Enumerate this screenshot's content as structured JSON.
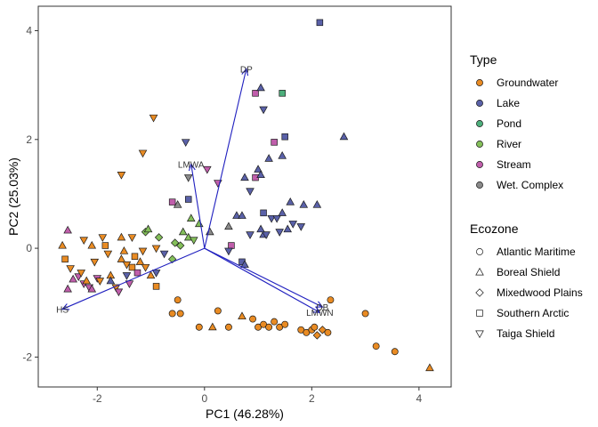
{
  "chart_data": {
    "type": "scatter",
    "xlabel": "PC1 (46.28%)",
    "ylabel": "PC2 (25.03%)",
    "xlim": [
      -3.1,
      4.6
    ],
    "ylim": [
      -2.55,
      4.45
    ],
    "xticks": [
      -2,
      0,
      2,
      4
    ],
    "yticks": [
      -2,
      0,
      2,
      4
    ],
    "grid": false,
    "legend_position": "right",
    "type_legend": {
      "title": "Type",
      "items": [
        {
          "name": "Groundwater",
          "color": "#E98B23"
        },
        {
          "name": "Lake",
          "color": "#5A61A8"
        },
        {
          "name": "Pond",
          "color": "#4DAF7C"
        },
        {
          "name": "River",
          "color": "#84BF5A"
        },
        {
          "name": "Stream",
          "color": "#C05EAB"
        },
        {
          "name": "Wet. Complex",
          "color": "#8A8A8A"
        }
      ]
    },
    "ecozone_legend": {
      "title": "Ecozone",
      "items": [
        {
          "name": "Atlantic Maritime",
          "shape": "circle"
        },
        {
          "name": "Boreal Shield",
          "shape": "triangle"
        },
        {
          "name": "Mixedwood Plains",
          "shape": "diamond"
        },
        {
          "name": "Southern Arctic",
          "shape": "square"
        },
        {
          "name": "Taiga Shield",
          "shape": "triangle-down"
        }
      ]
    },
    "vectors": [
      {
        "label": "DP",
        "x": 0.78,
        "y": 3.3
      },
      {
        "label": "LMWA",
        "x": -0.25,
        "y": 1.55
      },
      {
        "label": "HS",
        "x": -2.65,
        "y": -1.12
      },
      {
        "label": "DB",
        "x": 2.2,
        "y": -1.08
      },
      {
        "label": "LMWN",
        "x": 2.15,
        "y": -1.18
      }
    ],
    "points": [
      {
        "x": -2.65,
        "y": 0.05,
        "t": "Groundwater",
        "s": "triangle"
      },
      {
        "x": -2.6,
        "y": -0.2,
        "t": "Groundwater",
        "s": "square"
      },
      {
        "x": -2.55,
        "y": 0.33,
        "t": "Stream",
        "s": "triangle"
      },
      {
        "x": -2.5,
        "y": -0.37,
        "t": "Groundwater",
        "s": "triangle-down"
      },
      {
        "x": -2.45,
        "y": -0.57,
        "t": "Stream",
        "s": "triangle"
      },
      {
        "x": -2.55,
        "y": -0.75,
        "t": "Stream",
        "s": "triangle"
      },
      {
        "x": -2.35,
        "y": -0.52,
        "t": "Stream",
        "s": "triangle-down"
      },
      {
        "x": -2.3,
        "y": -0.45,
        "t": "Groundwater",
        "s": "triangle-down"
      },
      {
        "x": -2.25,
        "y": -0.65,
        "t": "Stream",
        "s": "triangle-down"
      },
      {
        "x": -2.2,
        "y": -0.6,
        "t": "Groundwater",
        "s": "triangle"
      },
      {
        "x": -2.15,
        "y": -0.72,
        "t": "Stream",
        "s": "triangle-down"
      },
      {
        "x": -2.1,
        "y": -0.75,
        "t": "Stream",
        "s": "triangle"
      },
      {
        "x": -2.25,
        "y": 0.15,
        "t": "Groundwater",
        "s": "triangle-down"
      },
      {
        "x": -2.1,
        "y": 0.05,
        "t": "Groundwater",
        "s": "triangle"
      },
      {
        "x": -2.05,
        "y": -0.25,
        "t": "Groundwater",
        "s": "triangle-down"
      },
      {
        "x": -2.0,
        "y": -0.55,
        "t": "Stream",
        "s": "triangle-down"
      },
      {
        "x": -1.95,
        "y": -0.6,
        "t": "Groundwater",
        "s": "triangle-down"
      },
      {
        "x": -1.85,
        "y": 0.05,
        "t": "Groundwater",
        "s": "square"
      },
      {
        "x": -1.8,
        "y": -0.1,
        "t": "Groundwater",
        "s": "triangle-down"
      },
      {
        "x": -1.75,
        "y": -0.5,
        "t": "Groundwater",
        "s": "triangle"
      },
      {
        "x": -1.9,
        "y": 0.2,
        "t": "Groundwater",
        "s": "triangle-down"
      },
      {
        "x": -1.65,
        "y": -0.72,
        "t": "Groundwater",
        "s": "triangle-down"
      },
      {
        "x": -1.6,
        "y": -0.8,
        "t": "Stream",
        "s": "triangle-down"
      },
      {
        "x": -1.55,
        "y": -0.2,
        "t": "Groundwater",
        "s": "triangle"
      },
      {
        "x": -1.5,
        "y": -0.05,
        "t": "Groundwater",
        "s": "triangle"
      },
      {
        "x": -1.45,
        "y": -0.3,
        "t": "Groundwater",
        "s": "triangle-down"
      },
      {
        "x": -1.4,
        "y": -0.65,
        "t": "Stream",
        "s": "triangle-down"
      },
      {
        "x": -1.35,
        "y": -0.35,
        "t": "Groundwater",
        "s": "square"
      },
      {
        "x": -1.3,
        "y": -0.15,
        "t": "Groundwater",
        "s": "square"
      },
      {
        "x": -1.25,
        "y": -0.45,
        "t": "Stream",
        "s": "square"
      },
      {
        "x": -1.2,
        "y": -0.25,
        "t": "Groundwater",
        "s": "triangle"
      },
      {
        "x": -1.15,
        "y": -0.05,
        "t": "Groundwater",
        "s": "triangle-down"
      },
      {
        "x": -1.55,
        "y": 0.2,
        "t": "Groundwater",
        "s": "triangle"
      },
      {
        "x": -1.35,
        "y": 0.2,
        "t": "Groundwater",
        "s": "triangle-down"
      },
      {
        "x": -1.1,
        "y": 0.3,
        "t": "River",
        "s": "diamond"
      },
      {
        "x": -1.05,
        "y": 0.35,
        "t": "River",
        "s": "triangle"
      },
      {
        "x": -0.9,
        "y": 0.0,
        "t": "Groundwater",
        "s": "triangle-down"
      },
      {
        "x": -0.85,
        "y": 0.2,
        "t": "River",
        "s": "diamond"
      },
      {
        "x": -0.75,
        "y": -0.1,
        "t": "Lake",
        "s": "triangle-down"
      },
      {
        "x": -0.6,
        "y": -0.2,
        "t": "River",
        "s": "diamond"
      },
      {
        "x": -0.55,
        "y": 0.1,
        "t": "River",
        "s": "diamond"
      },
      {
        "x": -0.45,
        "y": 0.05,
        "t": "River",
        "s": "diamond"
      },
      {
        "x": -0.4,
        "y": 0.3,
        "t": "River",
        "s": "triangle"
      },
      {
        "x": -0.3,
        "y": 0.2,
        "t": "River",
        "s": "triangle"
      },
      {
        "x": -0.25,
        "y": 0.55,
        "t": "River",
        "s": "triangle"
      },
      {
        "x": -0.2,
        "y": 0.15,
        "t": "River",
        "s": "triangle-down"
      },
      {
        "x": -0.1,
        "y": 0.45,
        "t": "River",
        "s": "triangle"
      },
      {
        "x": 0.1,
        "y": 0.3,
        "t": "Wet. Complex",
        "s": "triangle"
      },
      {
        "x": -0.9,
        "y": -0.45,
        "t": "Lake",
        "s": "triangle-down"
      },
      {
        "x": -0.9,
        "y": -0.7,
        "t": "Groundwater",
        "s": "square"
      },
      {
        "x": -1.0,
        "y": -0.5,
        "t": "Groundwater",
        "s": "triangle"
      },
      {
        "x": -1.1,
        "y": -0.35,
        "t": "Groundwater",
        "s": "triangle-down"
      },
      {
        "x": -0.95,
        "y": 2.4,
        "t": "Groundwater",
        "s": "triangle-down"
      },
      {
        "x": -1.15,
        "y": 1.75,
        "t": "Groundwater",
        "s": "triangle-down"
      },
      {
        "x": -1.55,
        "y": 1.35,
        "t": "Groundwater",
        "s": "triangle-down"
      },
      {
        "x": -0.35,
        "y": 1.95,
        "t": "Lake",
        "s": "triangle-down"
      },
      {
        "x": -0.3,
        "y": 1.3,
        "t": "Wet. Complex",
        "s": "triangle-down"
      },
      {
        "x": 0.05,
        "y": 1.45,
        "t": "Stream",
        "s": "triangle-down"
      },
      {
        "x": -0.6,
        "y": 0.85,
        "t": "Stream",
        "s": "square"
      },
      {
        "x": -0.5,
        "y": 0.8,
        "t": "Wet. Complex",
        "s": "triangle"
      },
      {
        "x": -0.3,
        "y": 0.9,
        "t": "Lake",
        "s": "square"
      },
      {
        "x": 0.25,
        "y": 1.2,
        "t": "Stream",
        "s": "triangle-down"
      },
      {
        "x": 0.45,
        "y": 0.4,
        "t": "Wet. Complex",
        "s": "triangle"
      },
      {
        "x": 0.5,
        "y": 0.05,
        "t": "Stream",
        "s": "square"
      },
      {
        "x": 0.45,
        "y": -0.05,
        "t": "Lake",
        "s": "triangle-down"
      },
      {
        "x": 0.7,
        "y": -0.25,
        "t": "Lake",
        "s": "square"
      },
      {
        "x": 0.75,
        "y": -0.3,
        "t": "Lake",
        "s": "triangle"
      },
      {
        "x": 0.85,
        "y": 0.25,
        "t": "Lake",
        "s": "triangle-down"
      },
      {
        "x": 0.6,
        "y": 0.6,
        "t": "Lake",
        "s": "triangle"
      },
      {
        "x": 0.7,
        "y": 0.6,
        "t": "Lake",
        "s": "triangle"
      },
      {
        "x": 0.75,
        "y": 1.3,
        "t": "Lake",
        "s": "triangle"
      },
      {
        "x": 0.95,
        "y": 1.3,
        "t": "Stream",
        "s": "square"
      },
      {
        "x": 0.85,
        "y": 1.05,
        "t": "Lake",
        "s": "triangle-down"
      },
      {
        "x": 1.0,
        "y": 1.45,
        "t": "Lake",
        "s": "triangle"
      },
      {
        "x": 0.95,
        "y": 2.85,
        "t": "Stream",
        "s": "square"
      },
      {
        "x": 1.05,
        "y": 2.95,
        "t": "Lake",
        "s": "triangle"
      },
      {
        "x": 1.1,
        "y": 2.55,
        "t": "Lake",
        "s": "triangle-down"
      },
      {
        "x": 1.3,
        "y": 1.95,
        "t": "Stream",
        "s": "square"
      },
      {
        "x": 1.5,
        "y": 2.05,
        "t": "Lake",
        "s": "square"
      },
      {
        "x": 1.45,
        "y": 2.85,
        "t": "Pond",
        "s": "square"
      },
      {
        "x": 1.2,
        "y": 1.65,
        "t": "Lake",
        "s": "triangle"
      },
      {
        "x": 1.45,
        "y": 1.7,
        "t": "Lake",
        "s": "triangle"
      },
      {
        "x": 1.05,
        "y": 1.35,
        "t": "Lake",
        "s": "triangle"
      },
      {
        "x": 1.1,
        "y": 0.25,
        "t": "Lake",
        "s": "triangle"
      },
      {
        "x": 1.1,
        "y": 0.65,
        "t": "Lake",
        "s": "square"
      },
      {
        "x": 1.15,
        "y": 0.25,
        "t": "Lake",
        "s": "triangle-down"
      },
      {
        "x": 1.05,
        "y": 0.35,
        "t": "Lake",
        "s": "triangle"
      },
      {
        "x": 1.25,
        "y": 0.55,
        "t": "Lake",
        "s": "triangle-down"
      },
      {
        "x": 1.35,
        "y": 0.55,
        "t": "Lake",
        "s": "triangle-down"
      },
      {
        "x": 1.4,
        "y": 0.3,
        "t": "Lake",
        "s": "triangle-down"
      },
      {
        "x": 1.45,
        "y": 0.65,
        "t": "Lake",
        "s": "triangle"
      },
      {
        "x": 1.55,
        "y": 0.35,
        "t": "Lake",
        "s": "triangle"
      },
      {
        "x": 1.6,
        "y": 0.85,
        "t": "Lake",
        "s": "triangle"
      },
      {
        "x": 1.65,
        "y": 0.45,
        "t": "Lake",
        "s": "triangle-down"
      },
      {
        "x": 1.85,
        "y": 0.8,
        "t": "Lake",
        "s": "triangle"
      },
      {
        "x": 1.8,
        "y": 0.4,
        "t": "Lake",
        "s": "triangle-down"
      },
      {
        "x": 2.1,
        "y": 0.8,
        "t": "Lake",
        "s": "triangle"
      },
      {
        "x": 2.15,
        "y": 4.15,
        "t": "Lake",
        "s": "square"
      },
      {
        "x": 2.6,
        "y": 2.05,
        "t": "Lake",
        "s": "triangle"
      },
      {
        "x": -1.45,
        "y": -0.5,
        "t": "Lake",
        "s": "triangle-down"
      },
      {
        "x": -1.75,
        "y": -0.6,
        "t": "Lake",
        "s": "triangle"
      },
      {
        "x": -0.5,
        "y": -0.95,
        "t": "Groundwater",
        "s": "circle"
      },
      {
        "x": -0.6,
        "y": -1.2,
        "t": "Groundwater",
        "s": "circle"
      },
      {
        "x": -0.45,
        "y": -1.2,
        "t": "Groundwater",
        "s": "circle"
      },
      {
        "x": -0.1,
        "y": -1.45,
        "t": "Groundwater",
        "s": "circle"
      },
      {
        "x": 0.15,
        "y": -1.45,
        "t": "Groundwater",
        "s": "triangle"
      },
      {
        "x": 0.25,
        "y": -1.15,
        "t": "Groundwater",
        "s": "circle"
      },
      {
        "x": 0.45,
        "y": -1.45,
        "t": "Groundwater",
        "s": "circle"
      },
      {
        "x": 0.7,
        "y": -1.25,
        "t": "Groundwater",
        "s": "triangle"
      },
      {
        "x": 0.9,
        "y": -1.3,
        "t": "Groundwater",
        "s": "circle"
      },
      {
        "x": 1.0,
        "y": -1.45,
        "t": "Groundwater",
        "s": "circle"
      },
      {
        "x": 1.1,
        "y": -1.4,
        "t": "Groundwater",
        "s": "circle"
      },
      {
        "x": 1.2,
        "y": -1.45,
        "t": "Groundwater",
        "s": "circle"
      },
      {
        "x": 1.3,
        "y": -1.35,
        "t": "Groundwater",
        "s": "circle"
      },
      {
        "x": 1.4,
        "y": -1.45,
        "t": "Groundwater",
        "s": "circle"
      },
      {
        "x": 1.5,
        "y": -1.4,
        "t": "Groundwater",
        "s": "circle"
      },
      {
        "x": 1.8,
        "y": -1.5,
        "t": "Groundwater",
        "s": "circle"
      },
      {
        "x": 1.9,
        "y": -1.55,
        "t": "Groundwater",
        "s": "circle"
      },
      {
        "x": 2.0,
        "y": -1.5,
        "t": "Groundwater",
        "s": "circle"
      },
      {
        "x": 2.05,
        "y": -1.45,
        "t": "Groundwater",
        "s": "circle"
      },
      {
        "x": 2.1,
        "y": -1.6,
        "t": "Groundwater",
        "s": "diamond"
      },
      {
        "x": 2.2,
        "y": -1.5,
        "t": "Groundwater",
        "s": "diamond"
      },
      {
        "x": 2.3,
        "y": -1.55,
        "t": "Groundwater",
        "s": "circle"
      },
      {
        "x": 2.35,
        "y": -0.95,
        "t": "Groundwater",
        "s": "circle"
      },
      {
        "x": 3.0,
        "y": -1.2,
        "t": "Groundwater",
        "s": "circle"
      },
      {
        "x": 3.2,
        "y": -1.8,
        "t": "Groundwater",
        "s": "circle"
      },
      {
        "x": 3.55,
        "y": -1.9,
        "t": "Groundwater",
        "s": "circle"
      },
      {
        "x": 4.2,
        "y": -2.2,
        "t": "Groundwater",
        "s": "triangle"
      }
    ]
  }
}
